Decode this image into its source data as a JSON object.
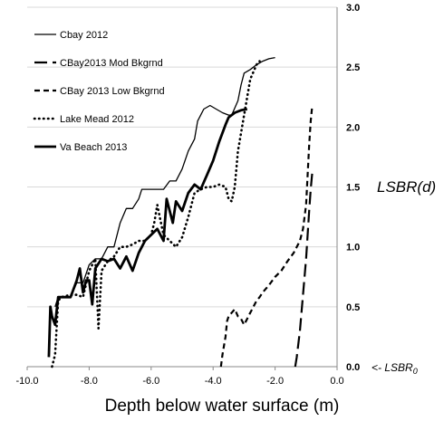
{
  "chart_data": {
    "type": "line",
    "xlabel": "Depth below water surface (m)",
    "ylabel": "LSBR(d)",
    "annotations": [
      "<- LSBR0"
    ],
    "xlim": [
      -10.0,
      0.0
    ],
    "ylim": [
      0.0,
      3.0
    ],
    "xticks": [
      "-10.0",
      "-8.0",
      "-6.0",
      "-4.0",
      "-2.0",
      "0.0"
    ],
    "yticks": [
      "0.0",
      "0.5",
      "1.0",
      "1.5",
      "2.0",
      "2.5",
      "3.0"
    ],
    "grid": true,
    "legend_position": "top-left",
    "series": [
      {
        "name": "Cbay 2012",
        "style": "thin-solid",
        "points": [
          [
            -9.1,
            0.5
          ],
          [
            -9.0,
            0.58
          ],
          [
            -8.6,
            0.58
          ],
          [
            -8.4,
            0.7
          ],
          [
            -8.2,
            0.7
          ],
          [
            -8.0,
            0.85
          ],
          [
            -7.8,
            0.9
          ],
          [
            -7.6,
            0.9
          ],
          [
            -7.4,
            1.0
          ],
          [
            -7.2,
            1.0
          ],
          [
            -7.0,
            1.2
          ],
          [
            -6.8,
            1.32
          ],
          [
            -6.6,
            1.32
          ],
          [
            -6.4,
            1.4
          ],
          [
            -6.3,
            1.48
          ],
          [
            -6.0,
            1.48
          ],
          [
            -5.8,
            1.48
          ],
          [
            -5.6,
            1.48
          ],
          [
            -5.4,
            1.55
          ],
          [
            -5.2,
            1.55
          ],
          [
            -5.0,
            1.65
          ],
          [
            -4.8,
            1.8
          ],
          [
            -4.6,
            1.9
          ],
          [
            -4.5,
            2.05
          ],
          [
            -4.3,
            2.15
          ],
          [
            -4.1,
            2.18
          ],
          [
            -3.9,
            2.15
          ],
          [
            -3.7,
            2.12
          ],
          [
            -3.5,
            2.1
          ],
          [
            -3.4,
            2.1
          ],
          [
            -3.2,
            2.22
          ],
          [
            -3.1,
            2.35
          ],
          [
            -3.0,
            2.45
          ],
          [
            -2.8,
            2.48
          ],
          [
            -2.6,
            2.52
          ],
          [
            -2.4,
            2.55
          ],
          [
            -2.2,
            2.57
          ],
          [
            -2.0,
            2.58
          ]
        ]
      },
      {
        "name": "CBay2013 Mod Bkgrnd",
        "style": "long-dash",
        "points": [
          [
            -1.35,
            0.0
          ],
          [
            -1.3,
            0.08
          ],
          [
            -1.2,
            0.3
          ],
          [
            -1.1,
            0.6
          ],
          [
            -1.0,
            0.9
          ],
          [
            -0.95,
            1.1
          ],
          [
            -0.9,
            1.3
          ],
          [
            -0.85,
            1.48
          ],
          [
            -0.8,
            1.62
          ],
          [
            -0.78,
            1.65
          ]
        ]
      },
      {
        "name": "CBay 2013 Low Bkgrnd",
        "style": "short-dash",
        "points": [
          [
            -3.75,
            0.0
          ],
          [
            -3.7,
            0.1
          ],
          [
            -3.6,
            0.25
          ],
          [
            -3.55,
            0.38
          ],
          [
            -3.5,
            0.42
          ],
          [
            -3.4,
            0.45
          ],
          [
            -3.3,
            0.48
          ],
          [
            -3.2,
            0.42
          ],
          [
            -3.1,
            0.4
          ],
          [
            -3.0,
            0.35
          ],
          [
            -2.9,
            0.4
          ],
          [
            -2.8,
            0.45
          ],
          [
            -2.7,
            0.5
          ],
          [
            -2.6,
            0.55
          ],
          [
            -2.5,
            0.58
          ],
          [
            -2.4,
            0.62
          ],
          [
            -2.2,
            0.68
          ],
          [
            -2.0,
            0.75
          ],
          [
            -1.8,
            0.8
          ],
          [
            -1.6,
            0.88
          ],
          [
            -1.4,
            0.95
          ],
          [
            -1.2,
            1.05
          ],
          [
            -1.1,
            1.15
          ],
          [
            -1.0,
            1.35
          ],
          [
            -0.95,
            1.6
          ],
          [
            -0.9,
            1.85
          ],
          [
            -0.85,
            2.05
          ],
          [
            -0.8,
            2.18
          ]
        ]
      },
      {
        "name": "Lake Mead 2012",
        "style": "dotted",
        "points": [
          [
            -9.2,
            0.0
          ],
          [
            -9.1,
            0.1
          ],
          [
            -9.0,
            0.55
          ],
          [
            -8.9,
            0.58
          ],
          [
            -8.6,
            0.6
          ],
          [
            -8.4,
            0.6
          ],
          [
            -8.2,
            0.58
          ],
          [
            -8.0,
            0.8
          ],
          [
            -7.8,
            0.9
          ],
          [
            -7.7,
            0.32
          ],
          [
            -7.6,
            0.8
          ],
          [
            -7.4,
            0.88
          ],
          [
            -7.2,
            0.92
          ],
          [
            -7.0,
            1.0
          ],
          [
            -6.8,
            1.0
          ],
          [
            -6.6,
            1.02
          ],
          [
            -6.4,
            1.05
          ],
          [
            -6.2,
            1.05
          ],
          [
            -6.0,
            1.1
          ],
          [
            -5.9,
            1.2
          ],
          [
            -5.8,
            1.35
          ],
          [
            -5.7,
            1.22
          ],
          [
            -5.6,
            1.1
          ],
          [
            -5.4,
            1.05
          ],
          [
            -5.2,
            1.0
          ],
          [
            -5.0,
            1.08
          ],
          [
            -4.8,
            1.25
          ],
          [
            -4.6,
            1.45
          ],
          [
            -4.4,
            1.48
          ],
          [
            -4.2,
            1.5
          ],
          [
            -4.0,
            1.5
          ],
          [
            -3.8,
            1.52
          ],
          [
            -3.6,
            1.5
          ],
          [
            -3.5,
            1.4
          ],
          [
            -3.4,
            1.38
          ],
          [
            -3.3,
            1.5
          ],
          [
            -3.2,
            1.8
          ],
          [
            -3.0,
            2.1
          ],
          [
            -2.8,
            2.4
          ],
          [
            -2.6,
            2.52
          ],
          [
            -2.5,
            2.55
          ]
        ]
      },
      {
        "name": "Va Beach 2013",
        "style": "thick-solid",
        "points": [
          [
            -9.3,
            0.08
          ],
          [
            -9.25,
            0.5
          ],
          [
            -9.2,
            0.42
          ],
          [
            -9.1,
            0.35
          ],
          [
            -9.0,
            0.58
          ],
          [
            -8.8,
            0.58
          ],
          [
            -8.6,
            0.58
          ],
          [
            -8.4,
            0.72
          ],
          [
            -8.3,
            0.82
          ],
          [
            -8.2,
            0.62
          ],
          [
            -8.1,
            0.72
          ],
          [
            -8.0,
            0.72
          ],
          [
            -7.9,
            0.52
          ],
          [
            -7.8,
            0.82
          ],
          [
            -7.6,
            0.9
          ],
          [
            -7.4,
            0.88
          ],
          [
            -7.2,
            0.9
          ],
          [
            -7.0,
            0.82
          ],
          [
            -6.8,
            0.92
          ],
          [
            -6.6,
            0.8
          ],
          [
            -6.4,
            0.95
          ],
          [
            -6.2,
            1.05
          ],
          [
            -6.0,
            1.1
          ],
          [
            -5.8,
            1.15
          ],
          [
            -5.6,
            1.05
          ],
          [
            -5.5,
            1.4
          ],
          [
            -5.3,
            1.2
          ],
          [
            -5.2,
            1.38
          ],
          [
            -5.0,
            1.3
          ],
          [
            -4.8,
            1.45
          ],
          [
            -4.6,
            1.52
          ],
          [
            -4.4,
            1.48
          ],
          [
            -4.2,
            1.6
          ],
          [
            -4.0,
            1.72
          ],
          [
            -3.8,
            1.88
          ],
          [
            -3.6,
            2.02
          ],
          [
            -3.5,
            2.08
          ],
          [
            -3.3,
            2.12
          ],
          [
            -3.1,
            2.14
          ],
          [
            -2.9,
            2.15
          ]
        ]
      }
    ]
  }
}
